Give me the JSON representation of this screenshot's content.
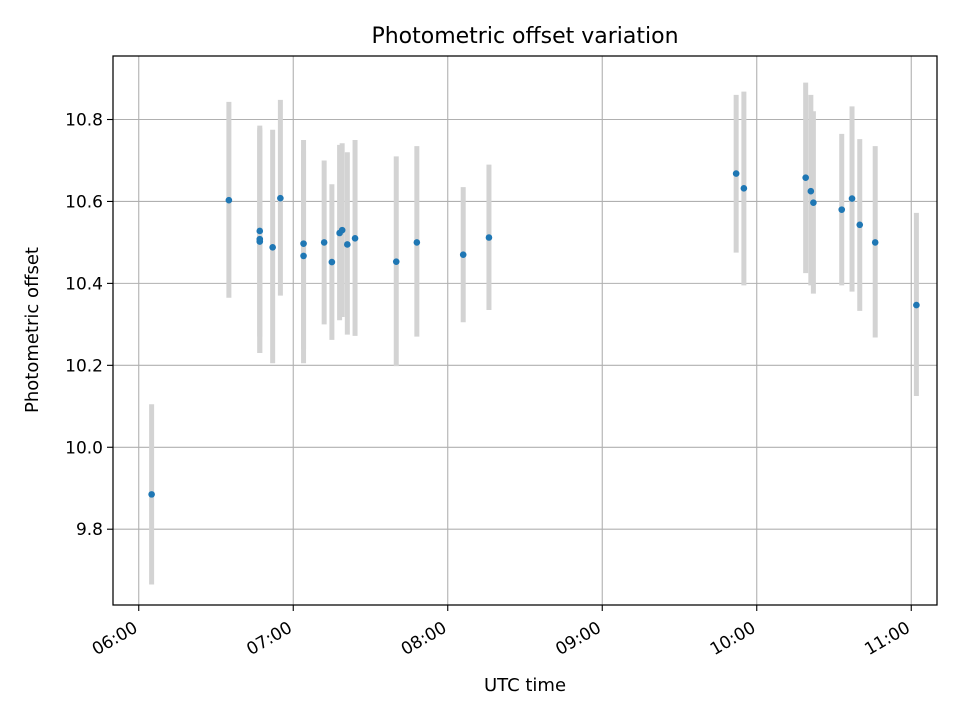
{
  "chart_data": {
    "type": "scatter",
    "title": "Photometric offset variation",
    "xlabel": "UTC time",
    "ylabel": "Photometric offset",
    "xlim": [
      "05:50",
      "11:10"
    ],
    "ylim": [
      9.615,
      10.955
    ],
    "xticks": [
      "06:00",
      "07:00",
      "08:00",
      "09:00",
      "10:00",
      "11:00"
    ],
    "yticks": [
      9.8,
      10.0,
      10.2,
      10.4,
      10.6,
      10.8
    ],
    "ytick_labels": [
      "9.8",
      "10.0",
      "10.2",
      "10.4",
      "10.6",
      "10.8"
    ],
    "grid": true,
    "colors": {
      "point": "#1f77b4",
      "errorbar": "#d3d3d3",
      "grid": "#b0b0b0"
    },
    "points": [
      {
        "x": "06:05",
        "y": 9.885,
        "ylow": 9.665,
        "yhigh": 10.105
      },
      {
        "x": "06:35",
        "y": 10.603,
        "ylow": 10.365,
        "yhigh": 10.843
      },
      {
        "x": "06:47",
        "y": 10.528,
        "ylow": 10.27,
        "yhigh": 10.785
      },
      {
        "x": "06:47",
        "y": 10.508,
        "ylow": 10.23,
        "yhigh": 10.78
      },
      {
        "x": "06:47",
        "y": 10.502,
        "ylow": 10.23,
        "yhigh": 10.775
      },
      {
        "x": "06:52",
        "y": 10.488,
        "ylow": 10.205,
        "yhigh": 10.775
      },
      {
        "x": "06:55",
        "y": 10.608,
        "ylow": 10.37,
        "yhigh": 10.848
      },
      {
        "x": "07:04",
        "y": 10.497,
        "ylow": 10.24,
        "yhigh": 10.75
      },
      {
        "x": "07:04",
        "y": 10.467,
        "ylow": 10.205,
        "yhigh": 10.725
      },
      {
        "x": "07:12",
        "y": 10.5,
        "ylow": 10.3,
        "yhigh": 10.7
      },
      {
        "x": "07:15",
        "y": 10.452,
        "ylow": 10.262,
        "yhigh": 10.642
      },
      {
        "x": "07:18",
        "y": 10.523,
        "ylow": 10.31,
        "yhigh": 10.738
      },
      {
        "x": "07:19",
        "y": 10.53,
        "ylow": 10.318,
        "yhigh": 10.742
      },
      {
        "x": "07:21",
        "y": 10.495,
        "ylow": 10.275,
        "yhigh": 10.72
      },
      {
        "x": "07:24",
        "y": 10.51,
        "ylow": 10.272,
        "yhigh": 10.75
      },
      {
        "x": "07:40",
        "y": 10.453,
        "ylow": 10.198,
        "yhigh": 10.71
      },
      {
        "x": "07:48",
        "y": 10.5,
        "ylow": 10.27,
        "yhigh": 10.735
      },
      {
        "x": "08:06",
        "y": 10.47,
        "ylow": 10.305,
        "yhigh": 10.635
      },
      {
        "x": "08:16",
        "y": 10.512,
        "ylow": 10.335,
        "yhigh": 10.69
      },
      {
        "x": "09:52",
        "y": 10.668,
        "ylow": 10.475,
        "yhigh": 10.86
      },
      {
        "x": "09:55",
        "y": 10.632,
        "ylow": 10.395,
        "yhigh": 10.868
      },
      {
        "x": "10:19",
        "y": 10.658,
        "ylow": 10.425,
        "yhigh": 10.89
      },
      {
        "x": "10:21",
        "y": 10.625,
        "ylow": 10.395,
        "yhigh": 10.86
      },
      {
        "x": "10:22",
        "y": 10.597,
        "ylow": 10.375,
        "yhigh": 10.82
      },
      {
        "x": "10:33",
        "y": 10.58,
        "ylow": 10.395,
        "yhigh": 10.765
      },
      {
        "x": "10:37",
        "y": 10.607,
        "ylow": 10.38,
        "yhigh": 10.832
      },
      {
        "x": "10:40",
        "y": 10.543,
        "ylow": 10.333,
        "yhigh": 10.752
      },
      {
        "x": "10:46",
        "y": 10.5,
        "ylow": 10.268,
        "yhigh": 10.735
      },
      {
        "x": "11:02",
        "y": 10.347,
        "ylow": 10.125,
        "yhigh": 10.572
      }
    ]
  }
}
